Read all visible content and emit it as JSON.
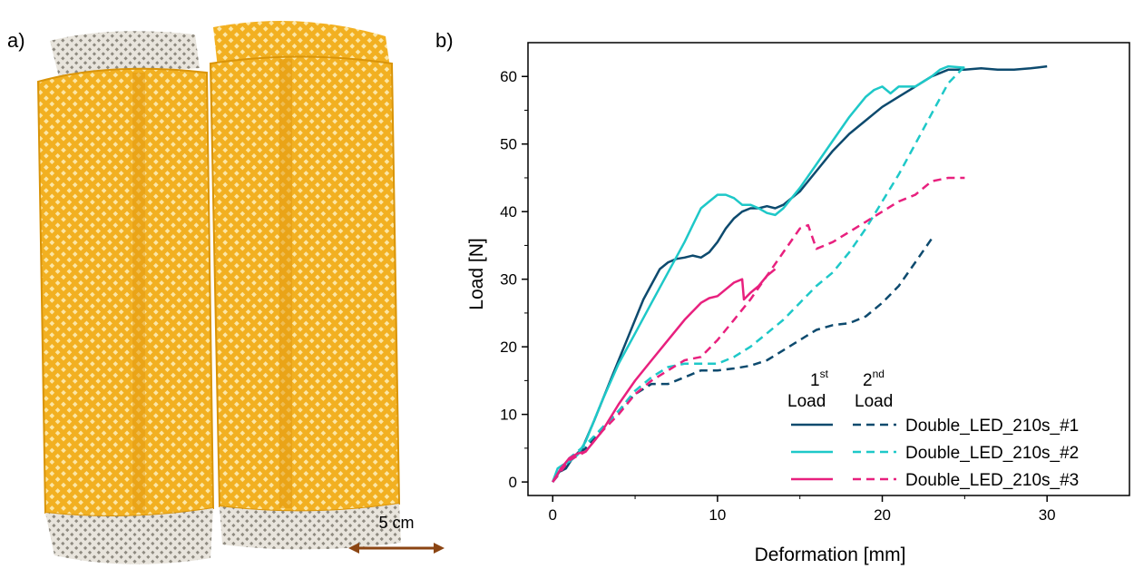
{
  "panel_a_label": "a)",
  "panel_b_label": "b)",
  "photo": {
    "scale_bar_label": "5 cm",
    "colors": {
      "mesh": "#f2b021",
      "mesh_dark": "#d99409",
      "base": "#e8e4dc",
      "arrow": "#8b4513"
    }
  },
  "legend": {
    "first_num": "1",
    "first_sup": "st",
    "first_word": "Load",
    "second_num": "2",
    "second_sup": "nd",
    "second_word": "Load"
  },
  "chart_data": {
    "type": "line",
    "xlabel": "Deformation [mm]",
    "ylabel": "Load [N]",
    "xlim": [
      -1.5,
      35
    ],
    "ylim": [
      -2,
      65
    ],
    "xticks": [
      0,
      10,
      20,
      30
    ],
    "yticks": [
      0,
      10,
      20,
      30,
      40,
      50,
      60
    ],
    "series": [
      {
        "name": "Double_LED_210s_#1",
        "color": "#0d4a6e",
        "dash": false,
        "x": [
          0,
          0.4,
          0.8,
          1.2,
          1.8,
          2.5,
          3.5,
          4.5,
          5.5,
          6.5,
          7,
          7.5,
          8,
          8.5,
          9,
          9.5,
          10,
          10.5,
          11,
          11.5,
          12,
          12.5,
          13,
          13.5,
          14,
          15,
          16,
          17,
          18,
          19,
          20,
          21,
          22,
          23,
          24,
          25,
          26,
          27,
          28,
          29,
          30
        ],
        "y": [
          0,
          1.5,
          2,
          3.5,
          5,
          9,
          15,
          21,
          27,
          31.5,
          32.5,
          33,
          33.2,
          33.5,
          33.2,
          34,
          35.5,
          37.5,
          39,
          40,
          40.5,
          40.5,
          40.8,
          40.5,
          41,
          43,
          46,
          49,
          51.5,
          53.5,
          55.5,
          57,
          58.5,
          60,
          61,
          61,
          61.2,
          61,
          61,
          61.2,
          61.5
        ]
      },
      {
        "name": "Double_LED_210s_#1",
        "color": "#0d4a6e",
        "dash": true,
        "x": [
          0,
          1,
          2,
          3,
          4,
          5,
          6,
          7,
          8,
          9,
          10,
          11,
          12,
          13,
          14,
          15,
          16,
          17,
          18,
          19,
          20,
          21,
          22,
          23
        ],
        "y": [
          0,
          3,
          5,
          8,
          10.5,
          13,
          14.5,
          14.5,
          15.5,
          16.5,
          16.5,
          16.8,
          17.2,
          18,
          19.5,
          21,
          22.5,
          23.2,
          23.5,
          24.5,
          26.5,
          29,
          32.5,
          36
        ]
      },
      {
        "name": "Double_LED_210s_#2",
        "color": "#1ec8c8",
        "dash": false,
        "x": [
          0,
          0.3,
          0.6,
          1,
          1.5,
          2,
          3,
          4,
          5,
          6,
          7,
          8,
          8.5,
          9,
          9.5,
          10,
          10.5,
          11,
          11.5,
          12,
          12.5,
          13,
          13.5,
          14,
          15,
          16,
          17,
          18,
          19,
          19.5,
          20,
          20.5,
          21,
          22,
          23,
          23.5,
          24,
          25
        ],
        "y": [
          0,
          2,
          2.5,
          3,
          4,
          6,
          12,
          17.5,
          22,
          26.5,
          31,
          35.5,
          38,
          40.5,
          41.5,
          42.5,
          42.5,
          42,
          41,
          41,
          40.5,
          39.8,
          39.5,
          40.5,
          43.5,
          47,
          50.5,
          54,
          57,
          58,
          58.5,
          57.5,
          58.5,
          58.5,
          60,
          61,
          61.5,
          61.3
        ]
      },
      {
        "name": "Double_LED_210s_#2",
        "color": "#1ec8c8",
        "dash": true,
        "x": [
          0,
          1,
          2,
          3,
          4,
          5,
          6,
          7,
          8,
          9,
          10,
          11,
          12,
          13,
          14,
          15,
          16,
          17,
          18,
          19,
          20,
          21,
          22,
          23,
          24,
          25
        ],
        "y": [
          0,
          3.5,
          5.5,
          8,
          10.5,
          13.5,
          15.5,
          17,
          17.5,
          17.5,
          17.5,
          18.5,
          20,
          22,
          24,
          26.5,
          29,
          31,
          34,
          37.5,
          41.5,
          45.5,
          50,
          54.5,
          59,
          61.5
        ]
      },
      {
        "name": "Double_LED_210s_#3",
        "color": "#e8207e",
        "dash": false,
        "x": [
          0,
          0.5,
          1,
          1.5,
          2,
          3,
          4,
          5,
          6,
          7,
          8,
          9,
          9.5,
          10,
          10.5,
          11,
          11.5,
          11.6,
          12,
          12.5,
          13,
          13.5
        ],
        "y": [
          0,
          2,
          3.5,
          4.2,
          4.5,
          7.5,
          11.5,
          15,
          18,
          21,
          24,
          26.5,
          27.2,
          27.5,
          28.5,
          29.5,
          30,
          27,
          28,
          29,
          30.5,
          31.5
        ]
      },
      {
        "name": "Double_LED_210s_#3",
        "color": "#e8207e",
        "dash": true,
        "x": [
          0,
          1,
          2,
          3,
          4,
          5,
          6,
          7,
          8,
          9,
          10,
          11,
          12,
          13,
          14,
          15,
          15.5,
          16,
          17,
          18,
          19,
          20,
          21,
          22,
          23,
          24,
          25
        ],
        "y": [
          0,
          3.2,
          4.5,
          7.5,
          10,
          13,
          15,
          16.5,
          18,
          18.5,
          21,
          24,
          27,
          30.5,
          34,
          37.5,
          38,
          34.5,
          35.5,
          37,
          38.5,
          40,
          41.5,
          42.5,
          44.5,
          45,
          45
        ]
      }
    ],
    "legend": [
      "Double_LED_210s_#1",
      "Double_LED_210s_#2",
      "Double_LED_210s_#3"
    ],
    "legend_placement": "bottom-right",
    "grid": false
  }
}
